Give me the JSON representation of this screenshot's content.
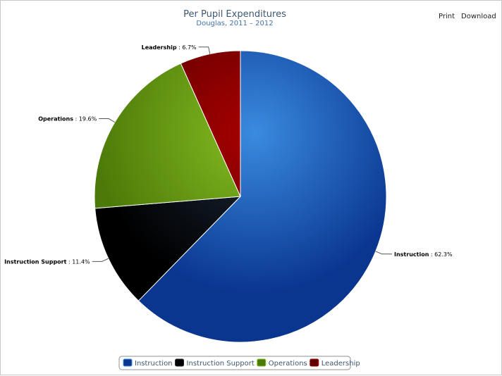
{
  "chart_data": {
    "type": "pie",
    "title": "Per Pupil Expenditures",
    "subtitle": "Douglas, 2011 – 2012",
    "slices": [
      {
        "name": "Instruction",
        "value": 62.3,
        "label": "62.3%",
        "color": "#1c4fa8"
      },
      {
        "name": "Instruction Support",
        "value": 11.4,
        "label": "11.4%",
        "color": "#0d1520"
      },
      {
        "name": "Operations",
        "value": 19.6,
        "label": "19.6%",
        "color": "#6e9e1a"
      },
      {
        "name": "Leadership",
        "value": 6.7,
        "label": "6.7%",
        "color": "#8c0000"
      }
    ],
    "legend_position": "bottom-center"
  },
  "toolbar": {
    "print_label": "Print",
    "download_label": "Download"
  },
  "gradients": {
    "Instruction": [
      "#3a8be0",
      "#0a3690"
    ],
    "Instruction Support": [
      "#1c2a3c",
      "#000000"
    ],
    "Operations": [
      "#86bd22",
      "#4c7a08"
    ],
    "Leadership": [
      "#a80000",
      "#5c0000"
    ]
  }
}
